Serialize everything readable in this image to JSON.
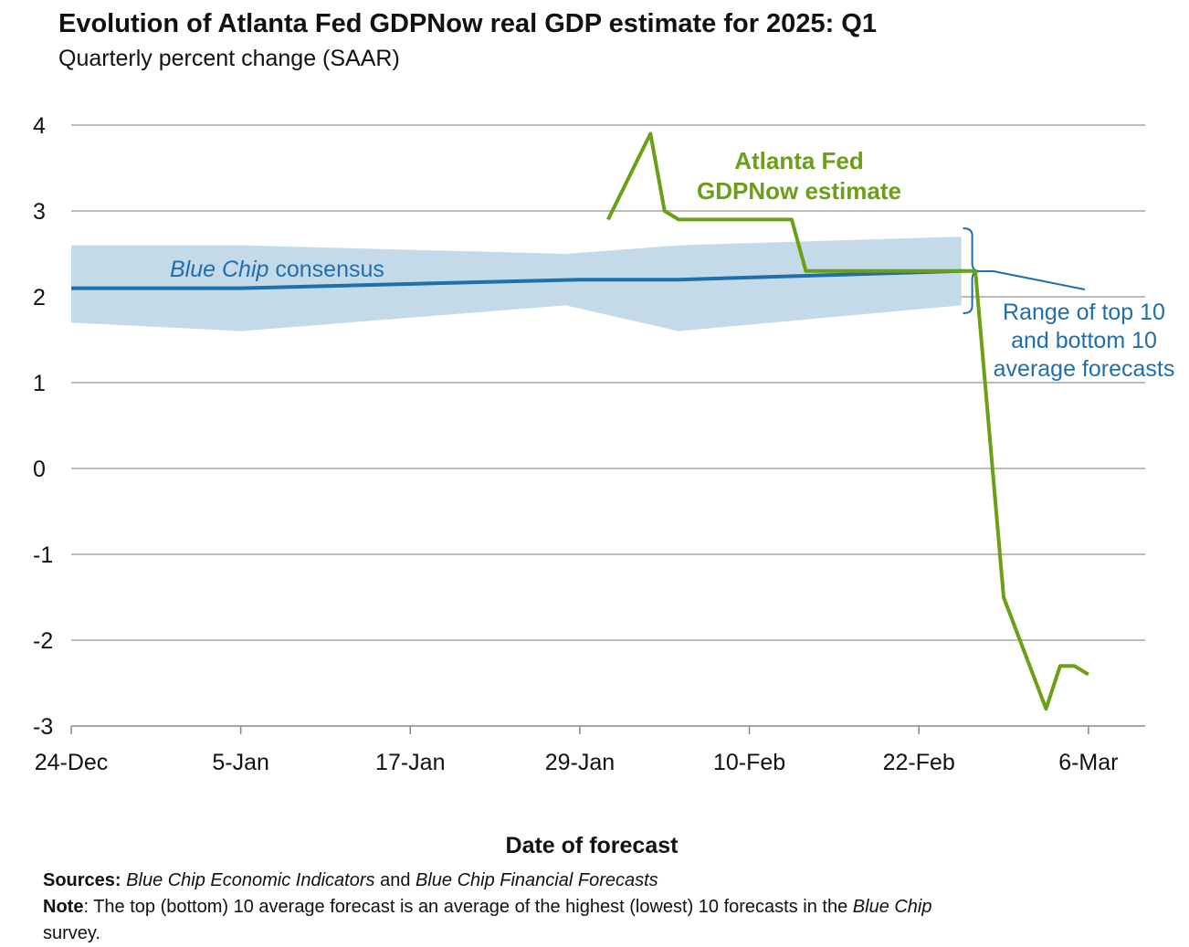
{
  "chart_data": {
    "type": "line",
    "title": "Evolution of Atlanta Fed GDPNow real GDP estimate for 2025: Q1",
    "subtitle": "Quarterly percent change (SAAR)",
    "xlabel": "Date of forecast",
    "ylabel": "",
    "ylim": [
      -3,
      4
    ],
    "yticks": [
      "-3",
      "-2",
      "-1",
      "0",
      "1",
      "2",
      "3",
      "4"
    ],
    "xticks": [
      {
        "label": "24-Dec",
        "day": 0
      },
      {
        "label": "5-Jan",
        "day": 12
      },
      {
        "label": "17-Jan",
        "day": 24
      },
      {
        "label": "29-Jan",
        "day": 36
      },
      {
        "label": "10-Feb",
        "day": 48
      },
      {
        "label": "22-Feb",
        "day": 60
      },
      {
        "label": "6-Mar",
        "day": 72
      }
    ],
    "x_unit": "days since 24-Dec",
    "grid": true,
    "series": [
      {
        "name": "Atlanta Fed GDPNow estimate",
        "label_lines": [
          "Atlanta Fed",
          "GDPNow estimate"
        ],
        "color": "#6a9f16",
        "x": [
          38,
          41,
          42,
          43,
          51,
          52,
          64,
          66,
          69,
          70,
          71,
          72
        ],
        "y": [
          2.9,
          3.9,
          3.0,
          2.9,
          2.9,
          2.3,
          2.3,
          -1.5,
          -2.8,
          -2.3,
          -2.3,
          -2.4
        ]
      },
      {
        "name": "Blue Chip consensus",
        "label_italic": "Blue Chip",
        "label_rest": " consensus",
        "color": "#1f6fad",
        "x": [
          0,
          12,
          36,
          43,
          63
        ],
        "y": [
          2.1,
          2.1,
          2.2,
          2.2,
          2.3
        ]
      }
    ],
    "band": {
      "name": "Range of top 10 and bottom 10 average forecasts",
      "label_lines": [
        "Range of top 10",
        "and bottom 10",
        "average forecasts"
      ],
      "color": "#c5dae9",
      "x": [
        0,
        12,
        35,
        43,
        63
      ],
      "upper": [
        2.6,
        2.6,
        2.5,
        2.6,
        2.7
      ],
      "lower": [
        1.7,
        1.6,
        1.9,
        1.6,
        1.9
      ]
    }
  },
  "footer": {
    "sources_label": "Sources:",
    "sources_1": "Blue Chip Economic Indicators",
    "sources_and": " and ",
    "sources_2": "Blue Chip Financial Forecasts",
    "note_label": "Note",
    "note_text": ": The top (bottom) 10 average forecast is an average of the highest (lowest) 10 forecasts in the ",
    "note_italic": "Blue Chip",
    "note_end": "survey."
  }
}
